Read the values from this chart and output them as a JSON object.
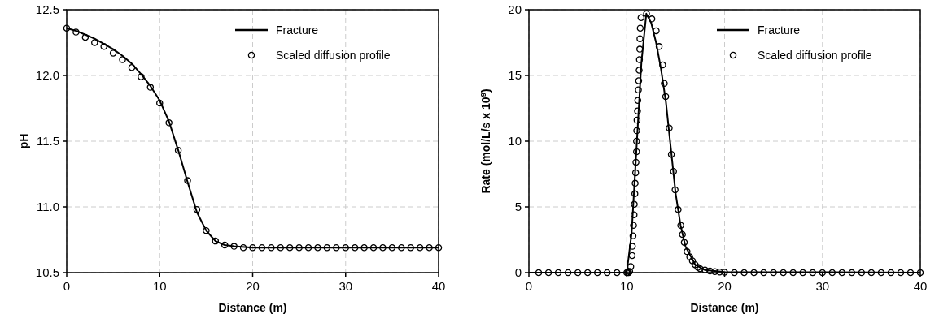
{
  "chart_data": [
    {
      "type": "line",
      "xlabel": "Distance (m)",
      "ylabel": "pH",
      "xlim": [
        0,
        40
      ],
      "xticks": [
        0,
        10,
        20,
        30,
        40
      ],
      "ylim": [
        10.5,
        12.5
      ],
      "yticks": [
        10.5,
        {
          "value": 11,
          "label": "11.0"
        },
        11.5,
        {
          "value": 12,
          "label": "12.0"
        },
        12.5
      ],
      "grid": true,
      "legend": "top right",
      "series": [
        {
          "name": "Fracture",
          "color": "#000000",
          "marker": "none",
          "x": [
            0,
            1,
            2,
            3,
            4,
            5,
            6,
            7,
            8,
            9,
            10,
            11,
            12,
            13,
            14,
            15,
            16,
            17,
            18,
            20,
            40
          ],
          "values": [
            12.36,
            12.34,
            12.31,
            12.28,
            12.24,
            12.2,
            12.15,
            12.09,
            12.01,
            11.92,
            11.81,
            11.65,
            11.43,
            11.19,
            10.96,
            10.82,
            10.74,
            10.71,
            10.7,
            10.69,
            10.69
          ]
        },
        {
          "name": "Scaled diffusion profile",
          "type": "scatter",
          "color": "#000000",
          "marker": "circle",
          "x": [
            0,
            1,
            2,
            3,
            4,
            5,
            6,
            7,
            8,
            9,
            10,
            11,
            12,
            13,
            14,
            15,
            16,
            17,
            18,
            19,
            20,
            21,
            22,
            23,
            24,
            25,
            26,
            27,
            28,
            29,
            30,
            31,
            32,
            33,
            34,
            35,
            36,
            37,
            38,
            39,
            40
          ],
          "values": [
            12.36,
            12.33,
            12.29,
            12.25,
            12.22,
            12.17,
            12.12,
            12.06,
            11.99,
            11.91,
            11.79,
            11.64,
            11.43,
            11.2,
            10.98,
            10.82,
            10.74,
            10.71,
            10.7,
            10.69,
            10.69,
            10.69,
            10.69,
            10.69,
            10.69,
            10.69,
            10.69,
            10.69,
            10.69,
            10.69,
            10.69,
            10.69,
            10.69,
            10.69,
            10.69,
            10.69,
            10.69,
            10.69,
            10.69,
            10.69,
            10.69
          ]
        }
      ]
    },
    {
      "type": "line",
      "xlabel": "Distance (m)",
      "ylabel": "Rate (mol/L/s x 10$^{9}$)",
      "xlim": [
        0,
        40
      ],
      "xticks": [
        0,
        10,
        20,
        30,
        40
      ],
      "ylim": [
        0,
        20
      ],
      "yticks": [
        0,
        5,
        10,
        15,
        20
      ],
      "grid": true,
      "legend": "top right",
      "series": [
        {
          "name": "Fracture",
          "color": "#000000",
          "marker": "none",
          "x": [
            0,
            10,
            10.5,
            11,
            11.5,
            12,
            12.5,
            13,
            13.5,
            14,
            14.5,
            15,
            15.5,
            16,
            17,
            18,
            20,
            40
          ],
          "values": [
            0,
            0,
            3,
            9.5,
            16,
            19.7,
            19,
            17.5,
            15.5,
            13,
            9.5,
            6,
            3.6,
            2,
            0.6,
            0.2,
            0.05,
            0
          ]
        },
        {
          "name": "Scaled diffusion profile",
          "type": "scatter",
          "color": "#000000",
          "marker": "circle",
          "x": [
            1,
            2,
            3,
            4,
            5,
            6,
            7,
            8,
            9,
            10,
            10.1,
            10.2,
            10.3,
            10.41,
            10.55,
            10.58,
            10.64,
            10.69,
            10.75,
            10.77,
            10.83,
            10.86,
            10.91,
            10.94,
            11,
            11,
            11.02,
            11.05,
            11.1,
            11.13,
            11.19,
            11.22,
            11.27,
            11.3,
            11.33,
            11.35,
            11.38,
            11.46,
            12.02,
            12.57,
            13.01,
            13.31,
            13.67,
            13.84,
            13.98,
            14.34,
            14.56,
            14.78,
            14.94,
            15.25,
            15.52,
            15.69,
            15.88,
            16.16,
            16.44,
            16.71,
            16.99,
            17.27,
            17.5,
            18,
            18.5,
            19,
            19.5,
            20,
            21,
            22,
            23,
            24,
            25,
            26,
            27,
            28,
            29,
            30,
            31,
            32,
            33,
            34,
            35,
            36,
            37,
            38,
            39,
            40
          ],
          "values": [
            0,
            0,
            0,
            0,
            0,
            0,
            0,
            0,
            0,
            0,
            0,
            0,
            0.1,
            0.47,
            1.3,
            2,
            2.8,
            3.6,
            4.4,
            5.2,
            6,
            6.8,
            7.6,
            8.4,
            9.2,
            10,
            10.8,
            11.6,
            12.3,
            13.1,
            13.9,
            14.6,
            15.4,
            16.2,
            17,
            17.8,
            18.6,
            19.4,
            19.7,
            19.3,
            18.4,
            17.2,
            15.8,
            14.4,
            13.4,
            11,
            9,
            7.7,
            6.3,
            4.8,
            3.6,
            2.9,
            2.3,
            1.6,
            1.2,
            0.9,
            0.6,
            0.4,
            0.3,
            0.2,
            0.12,
            0.08,
            0.05,
            0.03,
            0,
            0,
            0,
            0,
            0,
            0,
            0,
            0,
            0,
            0,
            0,
            0,
            0,
            0,
            0,
            0,
            0,
            0,
            0,
            0
          ]
        }
      ]
    }
  ]
}
